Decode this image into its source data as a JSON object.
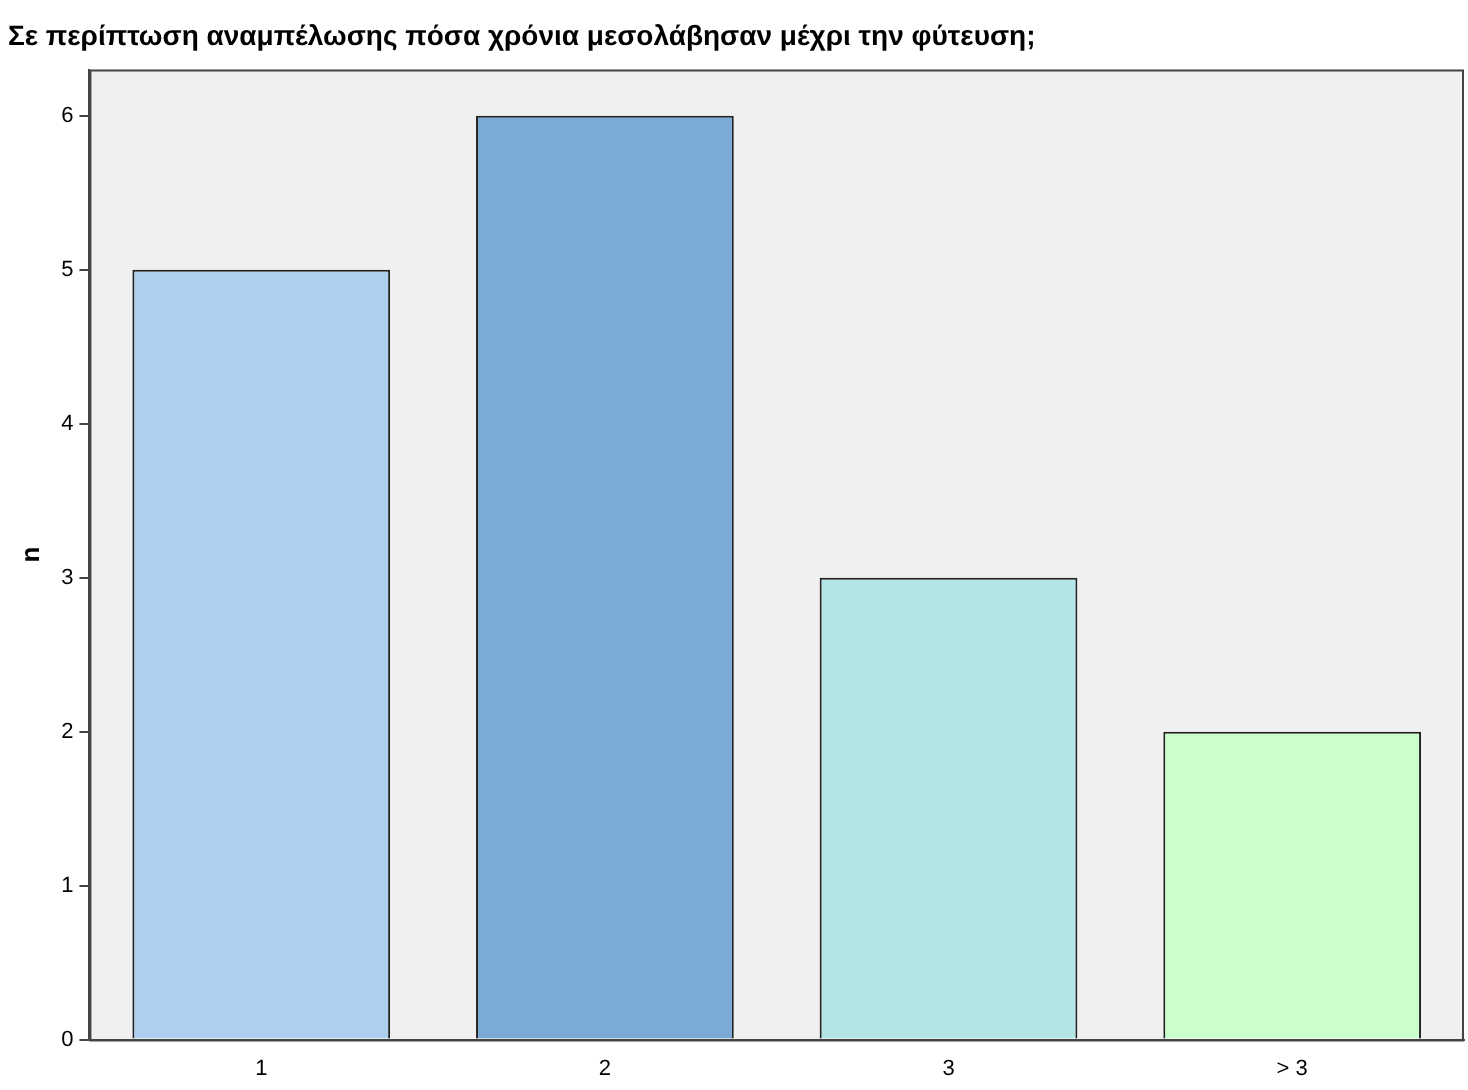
{
  "chart_data": {
    "type": "bar",
    "title": "Σε περίπτωση αναμπέλωσης πόσα χρόνια μεσολάβησαν μέχρι την φύτευση;",
    "ylabel": "n",
    "categories": [
      "1",
      "2",
      "3",
      "> 3"
    ],
    "values": [
      5,
      6,
      3,
      2
    ],
    "colors": [
      "#aecfed",
      "#7aaad5",
      "#b4e5e6",
      "#ccfecb"
    ],
    "ylim": [
      0,
      6.3
    ],
    "yticks": [
      0,
      1,
      2,
      3,
      4,
      5,
      6
    ],
    "grid": false,
    "legend": false
  }
}
